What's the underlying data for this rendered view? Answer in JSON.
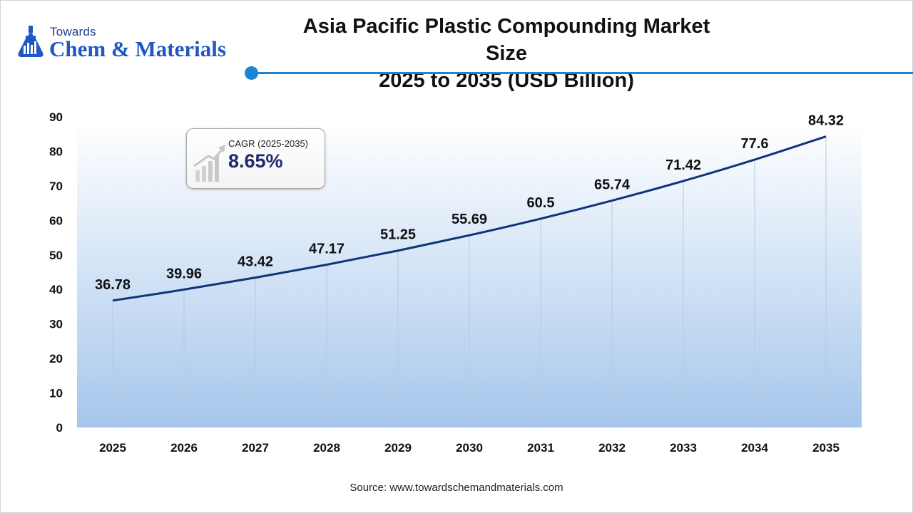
{
  "logo": {
    "top": "Towards",
    "main": "Chem & Materials"
  },
  "title_line1": "Asia Pacific Plastic Compounding Market Size",
  "title_line2": "2025 to 2035 (USD Billion)",
  "cagr": {
    "label": "CAGR (2025-2035)",
    "value": "8.65%"
  },
  "source": "Source: www.towardschemandmaterials.com",
  "colors": {
    "line": "#0f3479",
    "accent": "#1a86d3",
    "area_top": "#ffffff",
    "area_bottom": "#a5c6ec"
  },
  "chart_data": {
    "type": "line",
    "x": [
      "2025",
      "2026",
      "2027",
      "2028",
      "2029",
      "2030",
      "2031",
      "2032",
      "2033",
      "2034",
      "2035"
    ],
    "series": [
      {
        "values": [
          36.78,
          39.96,
          43.42,
          47.17,
          51.25,
          55.69,
          60.5,
          65.74,
          71.42,
          77.6,
          84.32
        ]
      }
    ],
    "data_labels": [
      "36.78",
      "39.96",
      "43.42",
      "47.17",
      "51.25",
      "55.69",
      "60.5",
      "65.74",
      "71.42",
      "77.6",
      "84.32"
    ],
    "yticks": [
      0,
      10,
      20,
      30,
      40,
      50,
      60,
      70,
      80,
      90
    ],
    "ylim": [
      0,
      90
    ],
    "grid": "vertical"
  }
}
